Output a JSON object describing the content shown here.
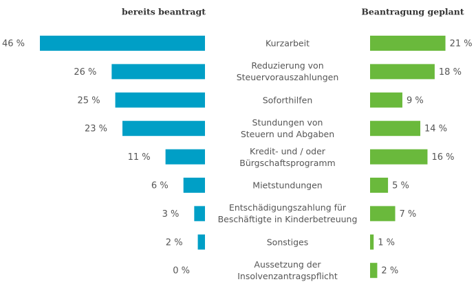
{
  "chart_data": {
    "type": "butterfly-bar",
    "categories": [
      "Kurzarbeit",
      "Reduzierung von\nSteuervorauszahlungen",
      "Soforthilfen",
      "Stundungen von\nSteuern und Abgaben",
      "Kredit- und / oder\nBürgschaftsprogramm",
      "Mietstundungen",
      "Entschädigungszahlung für\nBeschäftigte in Kinderbetreuung",
      "Sonstiges",
      "Aussetzung der\nInsolvenzantragspflicht"
    ],
    "series": [
      {
        "name": "bereits beantragt",
        "color": "#009fc6",
        "values": [
          46,
          26,
          25,
          23,
          11,
          6,
          3,
          2,
          0
        ],
        "value_labels": [
          "46 %",
          "26 %",
          "25 %",
          "23 %",
          "11 %",
          "6 %",
          "3 %",
          "2 %",
          "0 %"
        ]
      },
      {
        "name": "Beantragung geplant",
        "color": "#6ab93c",
        "values": [
          21,
          18,
          9,
          14,
          16,
          5,
          7,
          1,
          2
        ],
        "value_labels": [
          "21 %",
          "18 %",
          "9 %",
          "14 %",
          "16 %",
          "5 %",
          "7 %",
          "1 %",
          "2 %"
        ]
      }
    ]
  }
}
